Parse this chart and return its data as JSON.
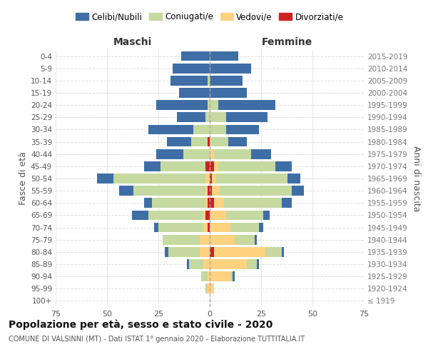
{
  "age_groups": [
    "100+",
    "95-99",
    "90-94",
    "85-89",
    "80-84",
    "75-79",
    "70-74",
    "65-69",
    "60-64",
    "55-59",
    "50-54",
    "45-49",
    "40-44",
    "35-39",
    "30-34",
    "25-29",
    "20-24",
    "15-19",
    "10-14",
    "5-9",
    "0-4"
  ],
  "birth_years": [
    "≤ 1919",
    "1920-1924",
    "1925-1929",
    "1930-1934",
    "1935-1939",
    "1940-1944",
    "1945-1949",
    "1950-1954",
    "1955-1959",
    "1960-1964",
    "1965-1969",
    "1970-1974",
    "1975-1979",
    "1980-1984",
    "1985-1989",
    "1990-1994",
    "1995-1999",
    "2000-2004",
    "2005-2009",
    "2010-2014",
    "2015-2019"
  ],
  "maschi": {
    "celibi": [
      0,
      0,
      0,
      1,
      2,
      0,
      2,
      8,
      4,
      7,
      8,
      8,
      13,
      12,
      22,
      14,
      25,
      15,
      18,
      18,
      14
    ],
    "coniugati": [
      0,
      1,
      3,
      7,
      15,
      18,
      22,
      27,
      26,
      35,
      45,
      22,
      13,
      8,
      8,
      2,
      1,
      0,
      1,
      0,
      0
    ],
    "vedovi": [
      0,
      1,
      1,
      3,
      5,
      5,
      2,
      1,
      1,
      1,
      2,
      0,
      0,
      0,
      0,
      0,
      0,
      0,
      0,
      0,
      0
    ],
    "divorziati": [
      0,
      0,
      0,
      0,
      0,
      0,
      1,
      2,
      1,
      1,
      0,
      2,
      0,
      1,
      0,
      0,
      0,
      0,
      0,
      0,
      0
    ]
  },
  "femmine": {
    "nubili": [
      0,
      0,
      1,
      1,
      1,
      1,
      2,
      3,
      5,
      6,
      6,
      8,
      10,
      9,
      16,
      20,
      28,
      18,
      16,
      20,
      14
    ],
    "coniugate": [
      0,
      0,
      1,
      5,
      8,
      10,
      14,
      18,
      28,
      35,
      35,
      28,
      18,
      8,
      8,
      8,
      4,
      0,
      0,
      0,
      0
    ],
    "vedove": [
      0,
      2,
      10,
      18,
      25,
      12,
      10,
      8,
      5,
      4,
      2,
      2,
      2,
      1,
      0,
      0,
      0,
      0,
      0,
      0,
      0
    ],
    "divorziate": [
      0,
      0,
      0,
      0,
      2,
      0,
      0,
      0,
      2,
      1,
      1,
      2,
      0,
      0,
      0,
      0,
      0,
      0,
      0,
      0,
      0
    ]
  },
  "colors": {
    "celibi": "#3f6ea6",
    "coniugati": "#c5d9a0",
    "vedovi": "#ffd27f",
    "divorziati": "#cc2222"
  },
  "xlim": 75,
  "xticks": [
    -75,
    -50,
    -25,
    0,
    25,
    50,
    75
  ],
  "title": "Popolazione per età, sesso e stato civile - 2020",
  "subtitle": "COMUNE DI VALSINNI (MT) - Dati ISTAT 1° gennaio 2020 - Elaborazione TUTTITALIA.IT",
  "ylabel_left": "Fasce di età",
  "ylabel_right": "Anni di nascita",
  "xlabel_left": "Maschi",
  "xlabel_right": "Femmine",
  "bar_height": 0.8,
  "bg_color": "#ffffff",
  "grid_color": "#dddddd",
  "spine_color": "#cccccc"
}
